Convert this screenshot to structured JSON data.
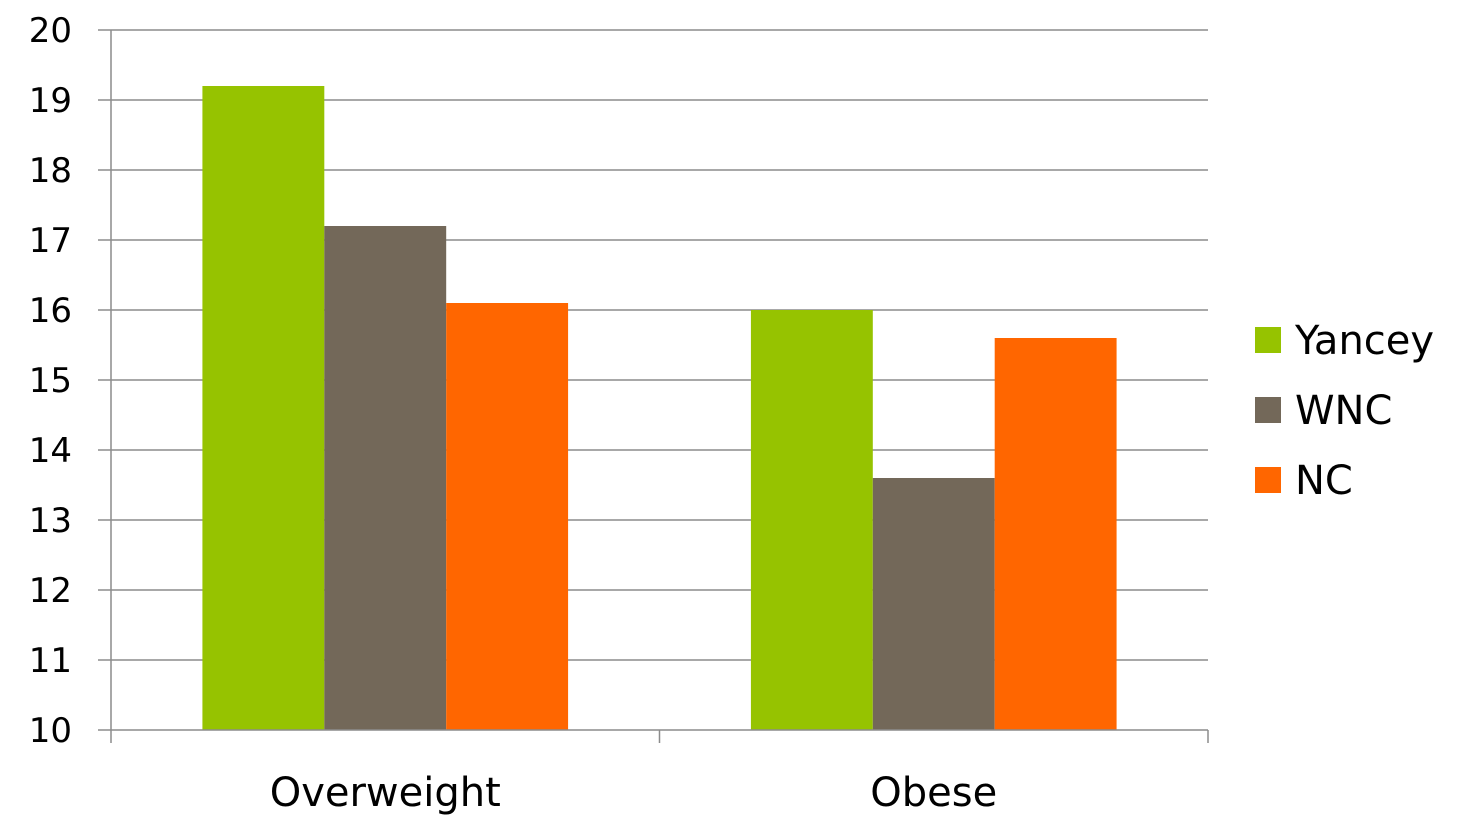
{
  "chart_data": {
    "type": "bar",
    "title": "",
    "xlabel": "",
    "ylabel": "",
    "categories": [
      "Overweight",
      "Obese"
    ],
    "series": [
      {
        "name": "Yancey",
        "color": "#96C300",
        "values": [
          19.2,
          16.0
        ]
      },
      {
        "name": "WNC",
        "color": "#736859",
        "values": [
          17.2,
          13.6
        ]
      },
      {
        "name": "NC",
        "color": "#FF6600",
        "values": [
          16.1,
          15.6
        ]
      }
    ],
    "ylim": [
      10,
      20
    ],
    "yticks": [
      "10",
      "11",
      "12",
      "13",
      "14",
      "15",
      "16",
      "17",
      "18",
      "19",
      "20"
    ],
    "grid": true,
    "legend_position": "right"
  }
}
